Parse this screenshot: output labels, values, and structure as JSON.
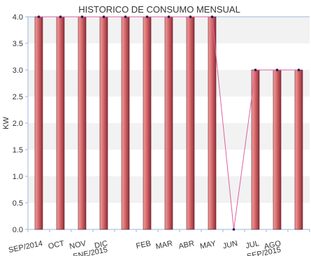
{
  "chart_data": {
    "type": "bar",
    "title": "HISTORICO DE CONSUMO MENSUAL",
    "ylabel": "KW",
    "xlabel": "",
    "ylim": [
      0,
      4
    ],
    "yticks": [
      "0.0",
      "0.5",
      "1.0",
      "1.5",
      "2.0",
      "2.5",
      "3.0",
      "3.5",
      "4.0"
    ],
    "categories": [
      {
        "line1": "SEP/2014",
        "line2": ""
      },
      {
        "line1": "OCT",
        "line2": ""
      },
      {
        "line1": "NOV",
        "line2": ""
      },
      {
        "line1": "DIC",
        "line2": "ENE/2015"
      },
      {
        "line1": "",
        "line2": ""
      },
      {
        "line1": "FEB",
        "line2": ""
      },
      {
        "line1": "MAR",
        "line2": ""
      },
      {
        "line1": "ABR",
        "line2": ""
      },
      {
        "line1": "MAY",
        "line2": ""
      },
      {
        "line1": "JUN",
        "line2": ""
      },
      {
        "line1": "JUL",
        "line2": ""
      },
      {
        "line1": "AGO",
        "line2": "SEP/2015"
      },
      {
        "line1": "",
        "line2": ""
      }
    ],
    "values": [
      4,
      4,
      4,
      4,
      4,
      4,
      4,
      4,
      4,
      0,
      3,
      3,
      3
    ],
    "grid": true,
    "legend": "none",
    "colors": {
      "bar_light": "#f2a0a0",
      "bar_mid": "#d86a6a",
      "bar_dark": "#8e2e3a",
      "bar_edge": "#5a1a2a",
      "line": "#e060a0",
      "marker": "#1a1a5a",
      "band": "#f2f2f2",
      "axis": "#9ab8d8"
    }
  }
}
